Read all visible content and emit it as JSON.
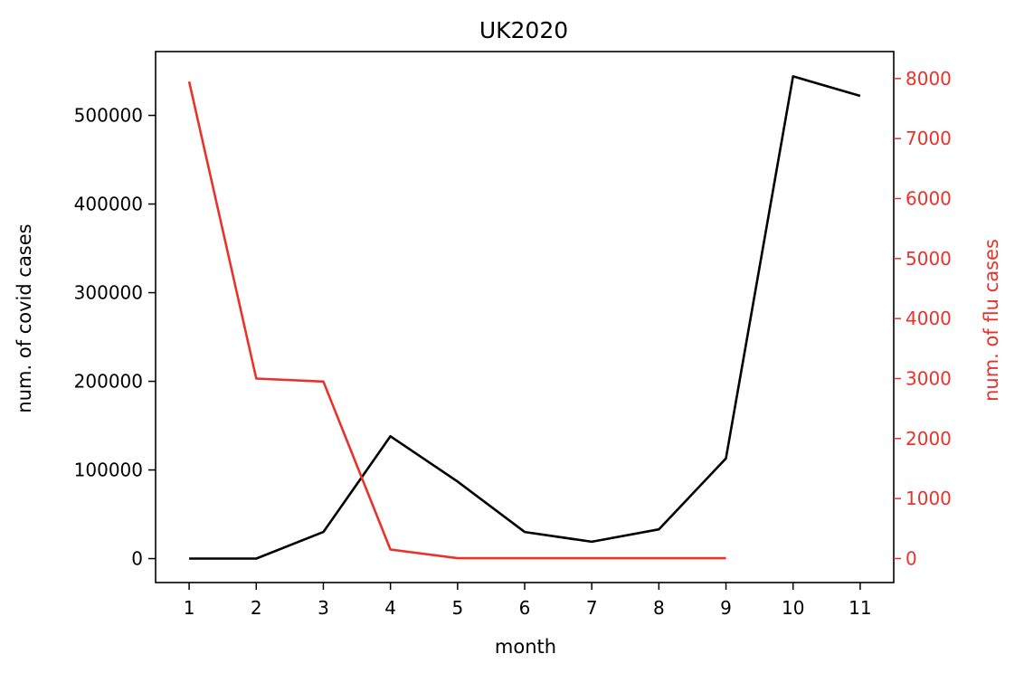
{
  "chart_data": {
    "type": "line",
    "title": "UK2020",
    "xlabel": "month",
    "ylabel": "num. of covid cases",
    "y2label": "num. of flu cases",
    "xlim": [
      0.5,
      11.5
    ],
    "ylim": [
      -27000,
      572000
    ],
    "y2lim": [
      -400,
      8450
    ],
    "x_ticks": [
      "1",
      "2",
      "3",
      "4",
      "5",
      "6",
      "7",
      "8",
      "9",
      "10",
      "11"
    ],
    "y_ticks": [
      "0",
      "100000",
      "200000",
      "300000",
      "400000",
      "500000"
    ],
    "y2_ticks": [
      "0",
      "1000",
      "2000",
      "3000",
      "4000",
      "5000",
      "6000",
      "7000",
      "8000"
    ],
    "colors": {
      "covid": "#000000",
      "flu": "#e8322b",
      "axis": "#000000"
    },
    "series": [
      {
        "axis": "left",
        "x": [
          1,
          2,
          3,
          4,
          5,
          6,
          7,
          8,
          9,
          10,
          11
        ],
        "values": [
          0,
          0,
          30000,
          138000,
          87000,
          30000,
          19000,
          33000,
          113000,
          544000,
          522000
        ]
      },
      {
        "axis": "right",
        "x": [
          1,
          2,
          3,
          4,
          5,
          6,
          7,
          8,
          9
        ],
        "values": [
          7950,
          3000,
          2950,
          150,
          5,
          5,
          5,
          5,
          5
        ]
      }
    ]
  }
}
